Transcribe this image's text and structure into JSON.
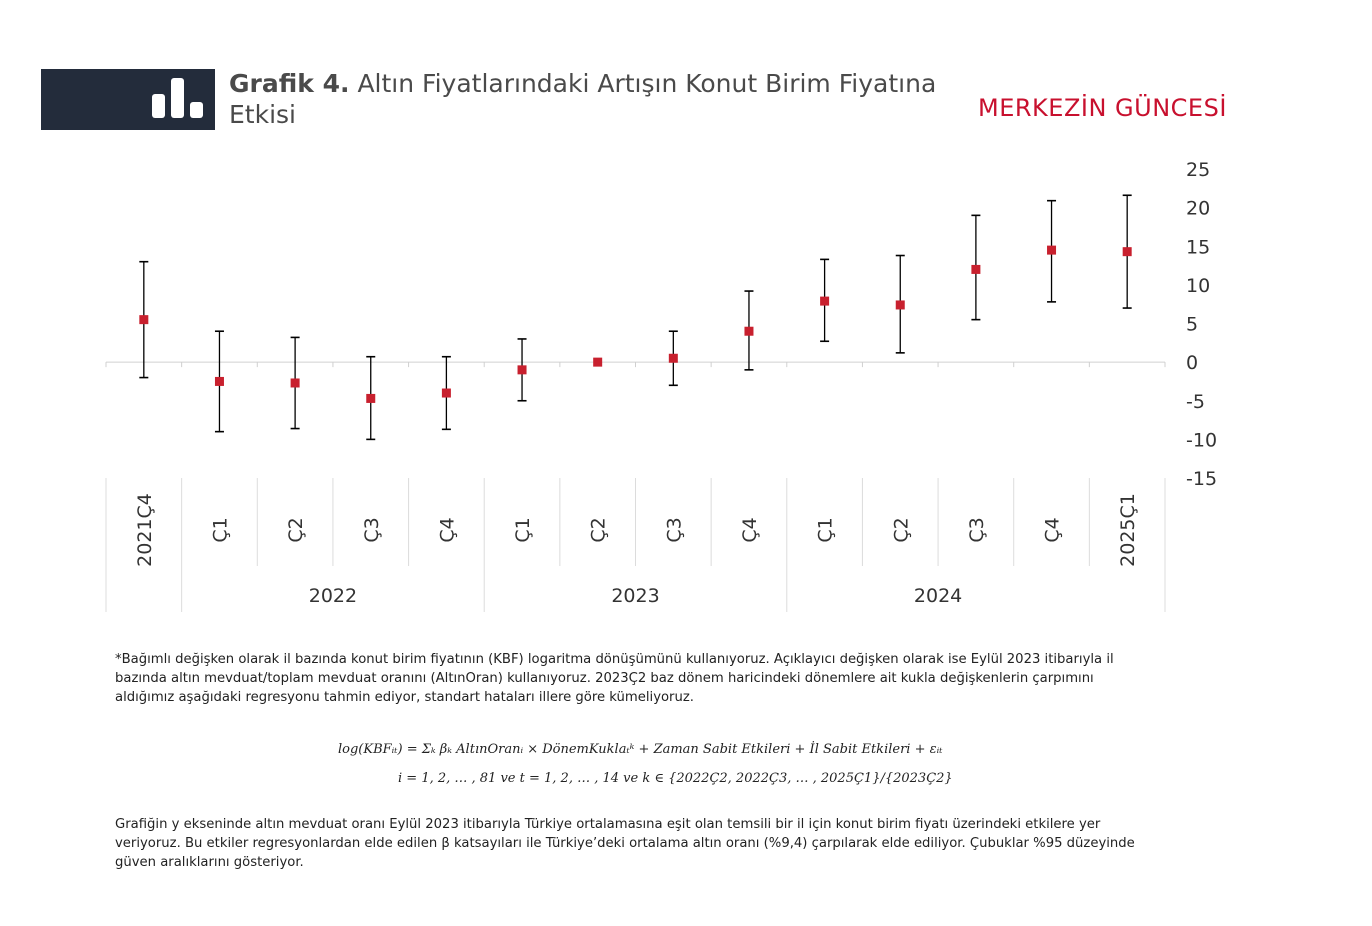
{
  "header": {
    "title_bold": "Grafik 4.",
    "title_rest_line1": "Altın Fiyatlarındaki Artışın Konut Birim Fiyatına",
    "title_rest_line2": "Etkisi",
    "brand": "MERKEZİN GÜNCESİ",
    "brand_color": "#c8102e",
    "box_color": "#232c3b",
    "icon": "bar-chart-icon"
  },
  "chart_data": {
    "type": "scatter",
    "title": "",
    "xlabel": "",
    "ylabel": "",
    "ylim": [
      -15,
      25
    ],
    "yticks": [
      25,
      20,
      15,
      10,
      5,
      0,
      -5,
      -10,
      -15
    ],
    "y_axis_side": "right",
    "categories": [
      "2021Ç4",
      "Ç1",
      "Ç2",
      "Ç3",
      "Ç4",
      "Ç1",
      "Ç2",
      "Ç3",
      "Ç4",
      "Ç1",
      "Ç2",
      "Ç3",
      "Ç4",
      "2025Ç1"
    ],
    "groups": [
      {
        "label": "2022",
        "span": [
          1,
          4
        ]
      },
      {
        "label": "2023",
        "span": [
          5,
          8
        ]
      },
      {
        "label": "2024",
        "span": [
          9,
          12
        ]
      }
    ],
    "series": [
      {
        "values": [
          5.5,
          -2.5,
          -2.7,
          -4.7,
          -4.0,
          -1.0,
          0.0,
          0.5,
          4.0,
          7.9,
          7.4,
          12.0,
          14.5,
          14.3
        ],
        "lower": [
          -2.0,
          -9.0,
          -8.6,
          -10.0,
          -8.7,
          -5.0,
          0.0,
          -3.0,
          -1.0,
          2.7,
          1.2,
          5.5,
          7.8,
          7.0
        ],
        "upper": [
          13.0,
          4.0,
          3.2,
          0.7,
          0.7,
          3.0,
          0.0,
          4.0,
          9.2,
          13.3,
          13.8,
          19.0,
          20.9,
          21.6
        ]
      }
    ],
    "marker_color": "#c8202e",
    "errorbar_color": "#000000",
    "grid": false
  },
  "notes": {
    "para1_line1": "*Bağımlı değişken olarak il bazında konut birim fiyatının (KBF) logaritma dönüşümünü  kullanıyoruz.  Açıklayıcı değişken olarak ise Eylül 2023 itibarıyla il",
    "para1_line2": "bazında altın mevduat/toplam  mevduat oranını (AltınOran) kullanıyoruz. 2023Ç2 baz dönem haricindeki dönemlere ait kukla değişkenlerin çarpımını",
    "para1_line3": "aldığımız aşağıdaki regresyonu tahmin ediyor,  standart hataları illere göre kümeliyoruz.",
    "formula_line1": "log(KBFᵢₜ) = Σₖ βₖ AltınOranᵢ × DönemKuklaₜᵏ + Zaman Sabit Etkileri + İl Sabit Etkileri + εᵢₜ",
    "formula_line2": "i = 1, 2, … , 81 ve t = 1, 2, … , 14 ve k ∈ {2022Ç2, 2022Ç3, … , 2025Ç1}/{2023Ç2}",
    "para2_line1": "Grafiğin y ekseninde altın mevduat oranı Eylül 2023 itibarıyla Türkiye ortalamasına eşit olan temsili bir il için konut birim fiyatı üzerindeki etkilere yer",
    "para2_line2": "veriyoruz. Bu etkiler regresyonlardan elde edilen β katsayıları ile Türkiye’deki ortalama altın oranı (%9,4) çarpılarak elde ediliyor. Çubuklar %95 düzeyinde",
    "para2_line3": "güven aralıklarını gösteriyor."
  }
}
